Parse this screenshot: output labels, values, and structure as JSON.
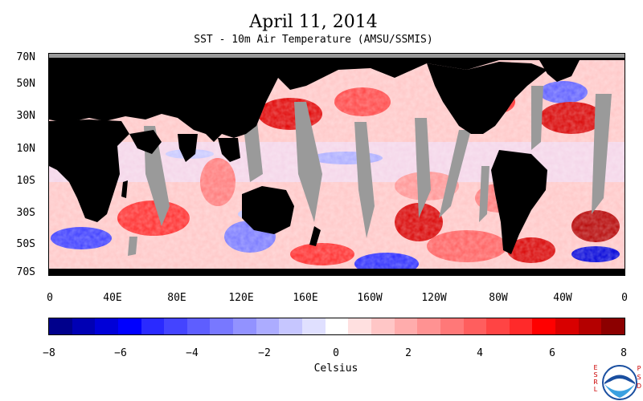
{
  "title": "April 11, 2014",
  "subtitle": "SST - 10m Air Temperature (AMSU/SSMIS)",
  "lat_labels": [
    "70N",
    "50N",
    "30N",
    "10N",
    "10S",
    "30S",
    "50S",
    "70S"
  ],
  "lon_labels": [
    "0",
    "40E",
    "80E",
    "120E",
    "160E",
    "160W",
    "120W",
    "80W",
    "40W",
    "0"
  ],
  "colorbar": {
    "tick_labels": [
      "−8",
      "−6",
      "−4",
      "−2",
      "0",
      "2",
      "4",
      "6",
      "8"
    ],
    "unit": "Celsius",
    "colors": [
      "#00008c",
      "#0000b4",
      "#0000d8",
      "#0000ff",
      "#2a2aff",
      "#4444ff",
      "#5e5eff",
      "#7878ff",
      "#9292ff",
      "#acacff",
      "#c6c6ff",
      "#e0e0ff",
      "#ffffff",
      "#ffe0e0",
      "#ffc6c6",
      "#ffacac",
      "#ff9292",
      "#ff7878",
      "#ff5e5e",
      "#ff4444",
      "#ff2a2a",
      "#ff0000",
      "#d80000",
      "#b40000",
      "#8c0000"
    ]
  },
  "legend_colors": {
    "land": "#000000",
    "no_data": "#9a9a9a"
  },
  "logo": {
    "left_letters": "ESRL",
    "right_letters": "PSD",
    "center_text": "NOAA"
  }
}
